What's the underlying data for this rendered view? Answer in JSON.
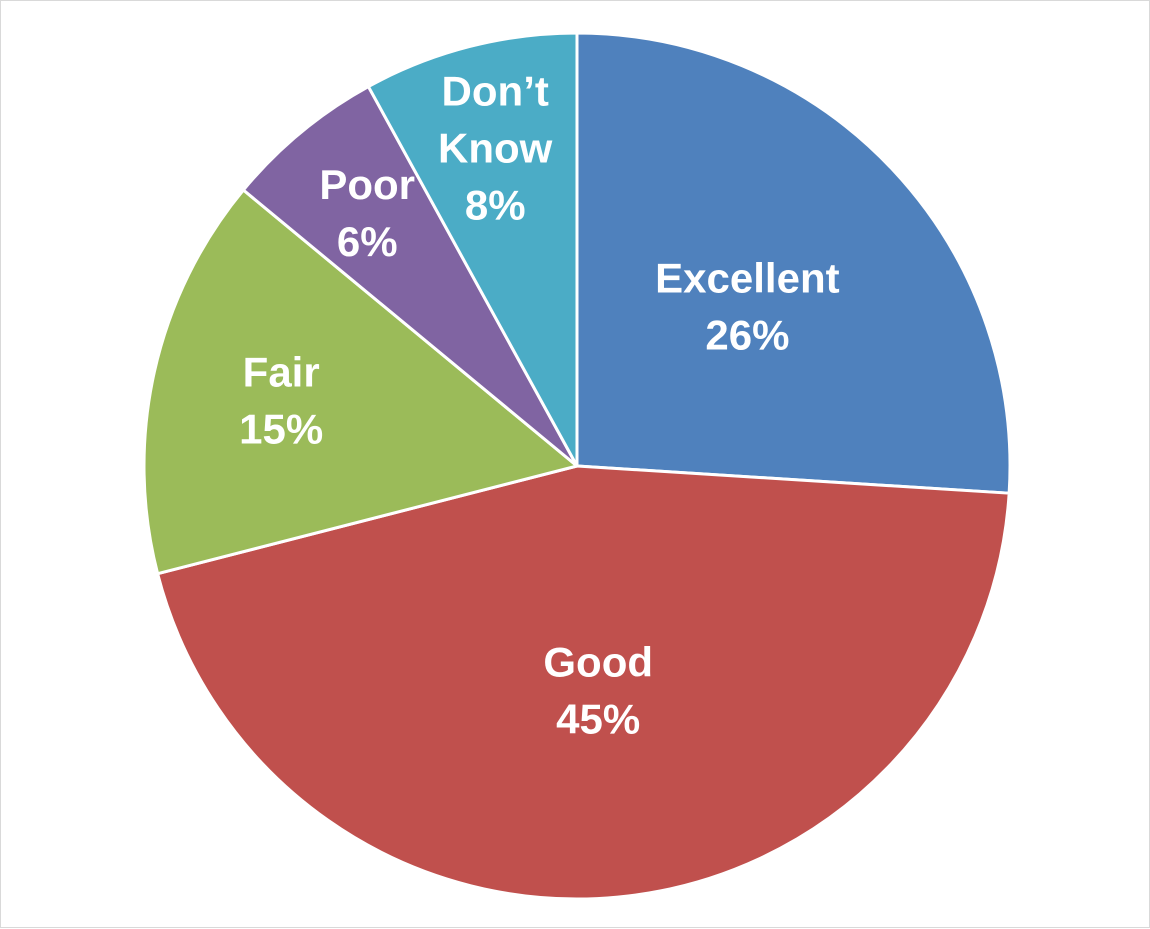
{
  "chart_data": {
    "type": "pie",
    "title": "",
    "categories": [
      "Excellent",
      "Good",
      "Fair",
      "Poor",
      "Don’t Know"
    ],
    "values": [
      26,
      45,
      15,
      6,
      8
    ],
    "value_labels": [
      "26%",
      "45%",
      "15%",
      "6%",
      "8%"
    ],
    "colors": [
      "#4F81BD",
      "#C0504D",
      "#9BBB59",
      "#8064A2",
      "#4BACC6"
    ],
    "start_angle": "12 o'clock",
    "direction": "clockwise",
    "legend": "none",
    "label_lines": [
      [
        "Excellent",
        "26%"
      ],
      [
        "Good",
        "45%"
      ],
      [
        "Fair",
        "15%"
      ],
      [
        "Poor",
        "6%"
      ],
      [
        "Don’t",
        "Know",
        "8%"
      ]
    ]
  }
}
